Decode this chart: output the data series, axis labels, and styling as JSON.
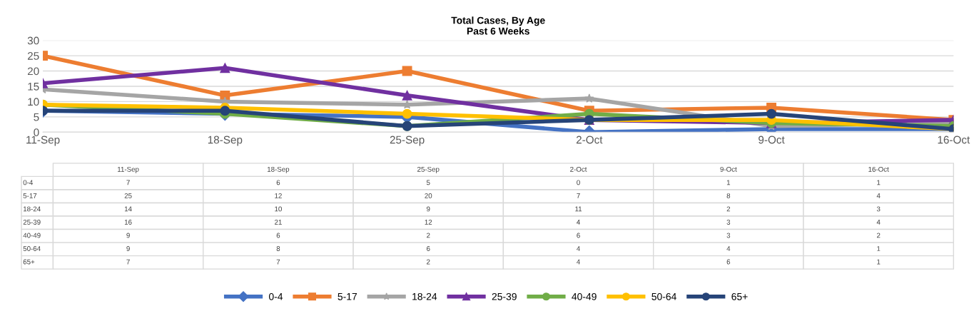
{
  "chart_data": {
    "type": "line",
    "title": "Total Cases, By Age\nPast 6 Weeks",
    "categories": [
      "11-Sep",
      "18-Sep",
      "25-Sep",
      "2-Oct",
      "9-Oct",
      "16-Oct"
    ],
    "series": [
      {
        "name": "0-4",
        "color": "#4472c4",
        "marker": "diamond",
        "values": [
          7,
          6,
          5,
          0,
          1,
          1
        ]
      },
      {
        "name": "5-17",
        "color": "#ed7d31",
        "marker": "square",
        "values": [
          25,
          12,
          20,
          7,
          8,
          4
        ]
      },
      {
        "name": "18-24",
        "color": "#a5a5a5",
        "marker": "star",
        "values": [
          14,
          10,
          9,
          11,
          2,
          3
        ]
      },
      {
        "name": "25-39",
        "color": "#7030a0",
        "marker": "triangle",
        "values": [
          16,
          21,
          12,
          4,
          3,
          4
        ]
      },
      {
        "name": "40-49",
        "color": "#70ad47",
        "marker": "circle",
        "values": [
          9,
          6,
          2,
          6,
          3,
          2
        ]
      },
      {
        "name": "50-64",
        "color": "#ffc000",
        "marker": "circle",
        "values": [
          9,
          8,
          6,
          4,
          4,
          1
        ]
      },
      {
        "name": "65+",
        "color": "#264478",
        "marker": "circle",
        "values": [
          7,
          7,
          2,
          4,
          6,
          1
        ]
      }
    ],
    "ylim": [
      0,
      30
    ],
    "yticks": [
      0,
      5,
      10,
      15,
      20,
      25,
      30
    ],
    "grid": "y",
    "legend": "bottom",
    "data_labels": true
  }
}
